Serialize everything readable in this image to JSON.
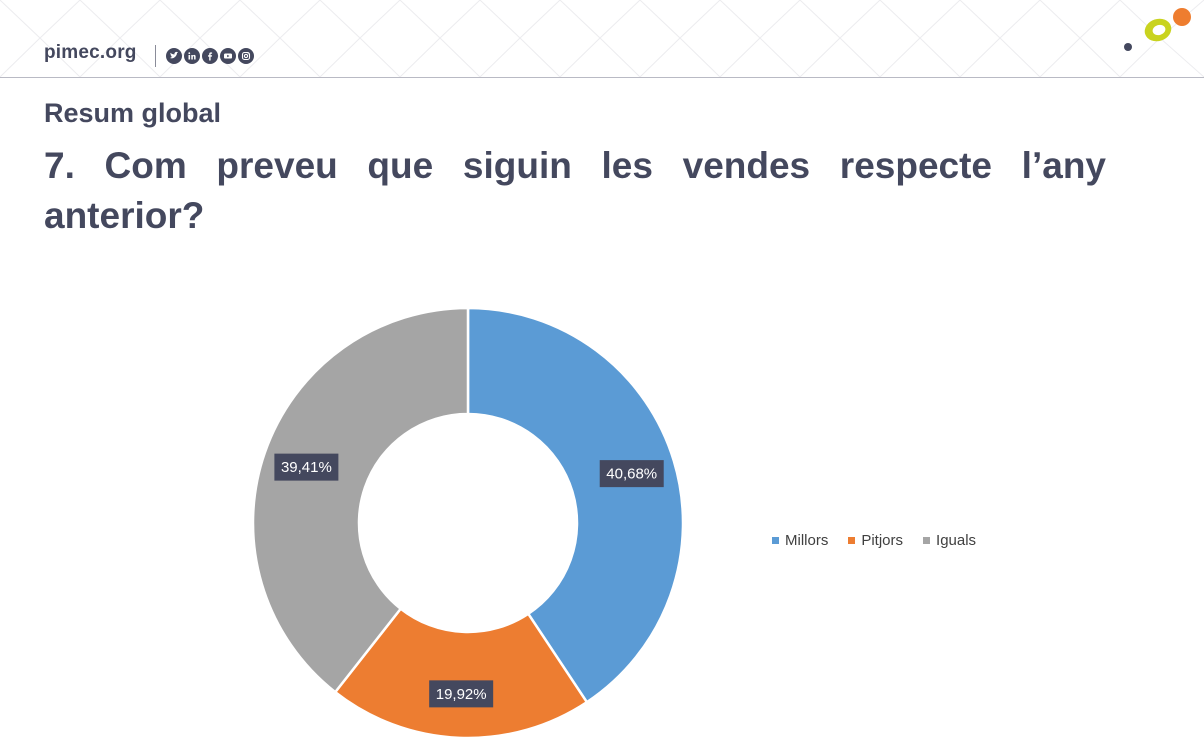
{
  "header": {
    "brand": "pimec.org",
    "social_icons": [
      "twitter-icon",
      "linkedin-icon",
      "facebook-icon",
      "youtube-icon",
      "instagram-icon"
    ],
    "logo_colors": {
      "green": "#c9d31f",
      "orange": "#ee7d2f",
      "dot": "#44485e"
    }
  },
  "page": {
    "section": "Resum global",
    "question": "7. Com preveu que siguin les vendes respecte l’any anterior?"
  },
  "chart_data": {
    "type": "pie",
    "donut": true,
    "categories": [
      "Millors",
      "Pitjors",
      "Iguals"
    ],
    "values": [
      40.68,
      19.92,
      39.41
    ],
    "labels": [
      "40,68%",
      "19,92%",
      "39,41%"
    ],
    "colors": [
      "#5b9bd5",
      "#ed7d31",
      "#a5a5a5"
    ],
    "legend_position": "right"
  }
}
